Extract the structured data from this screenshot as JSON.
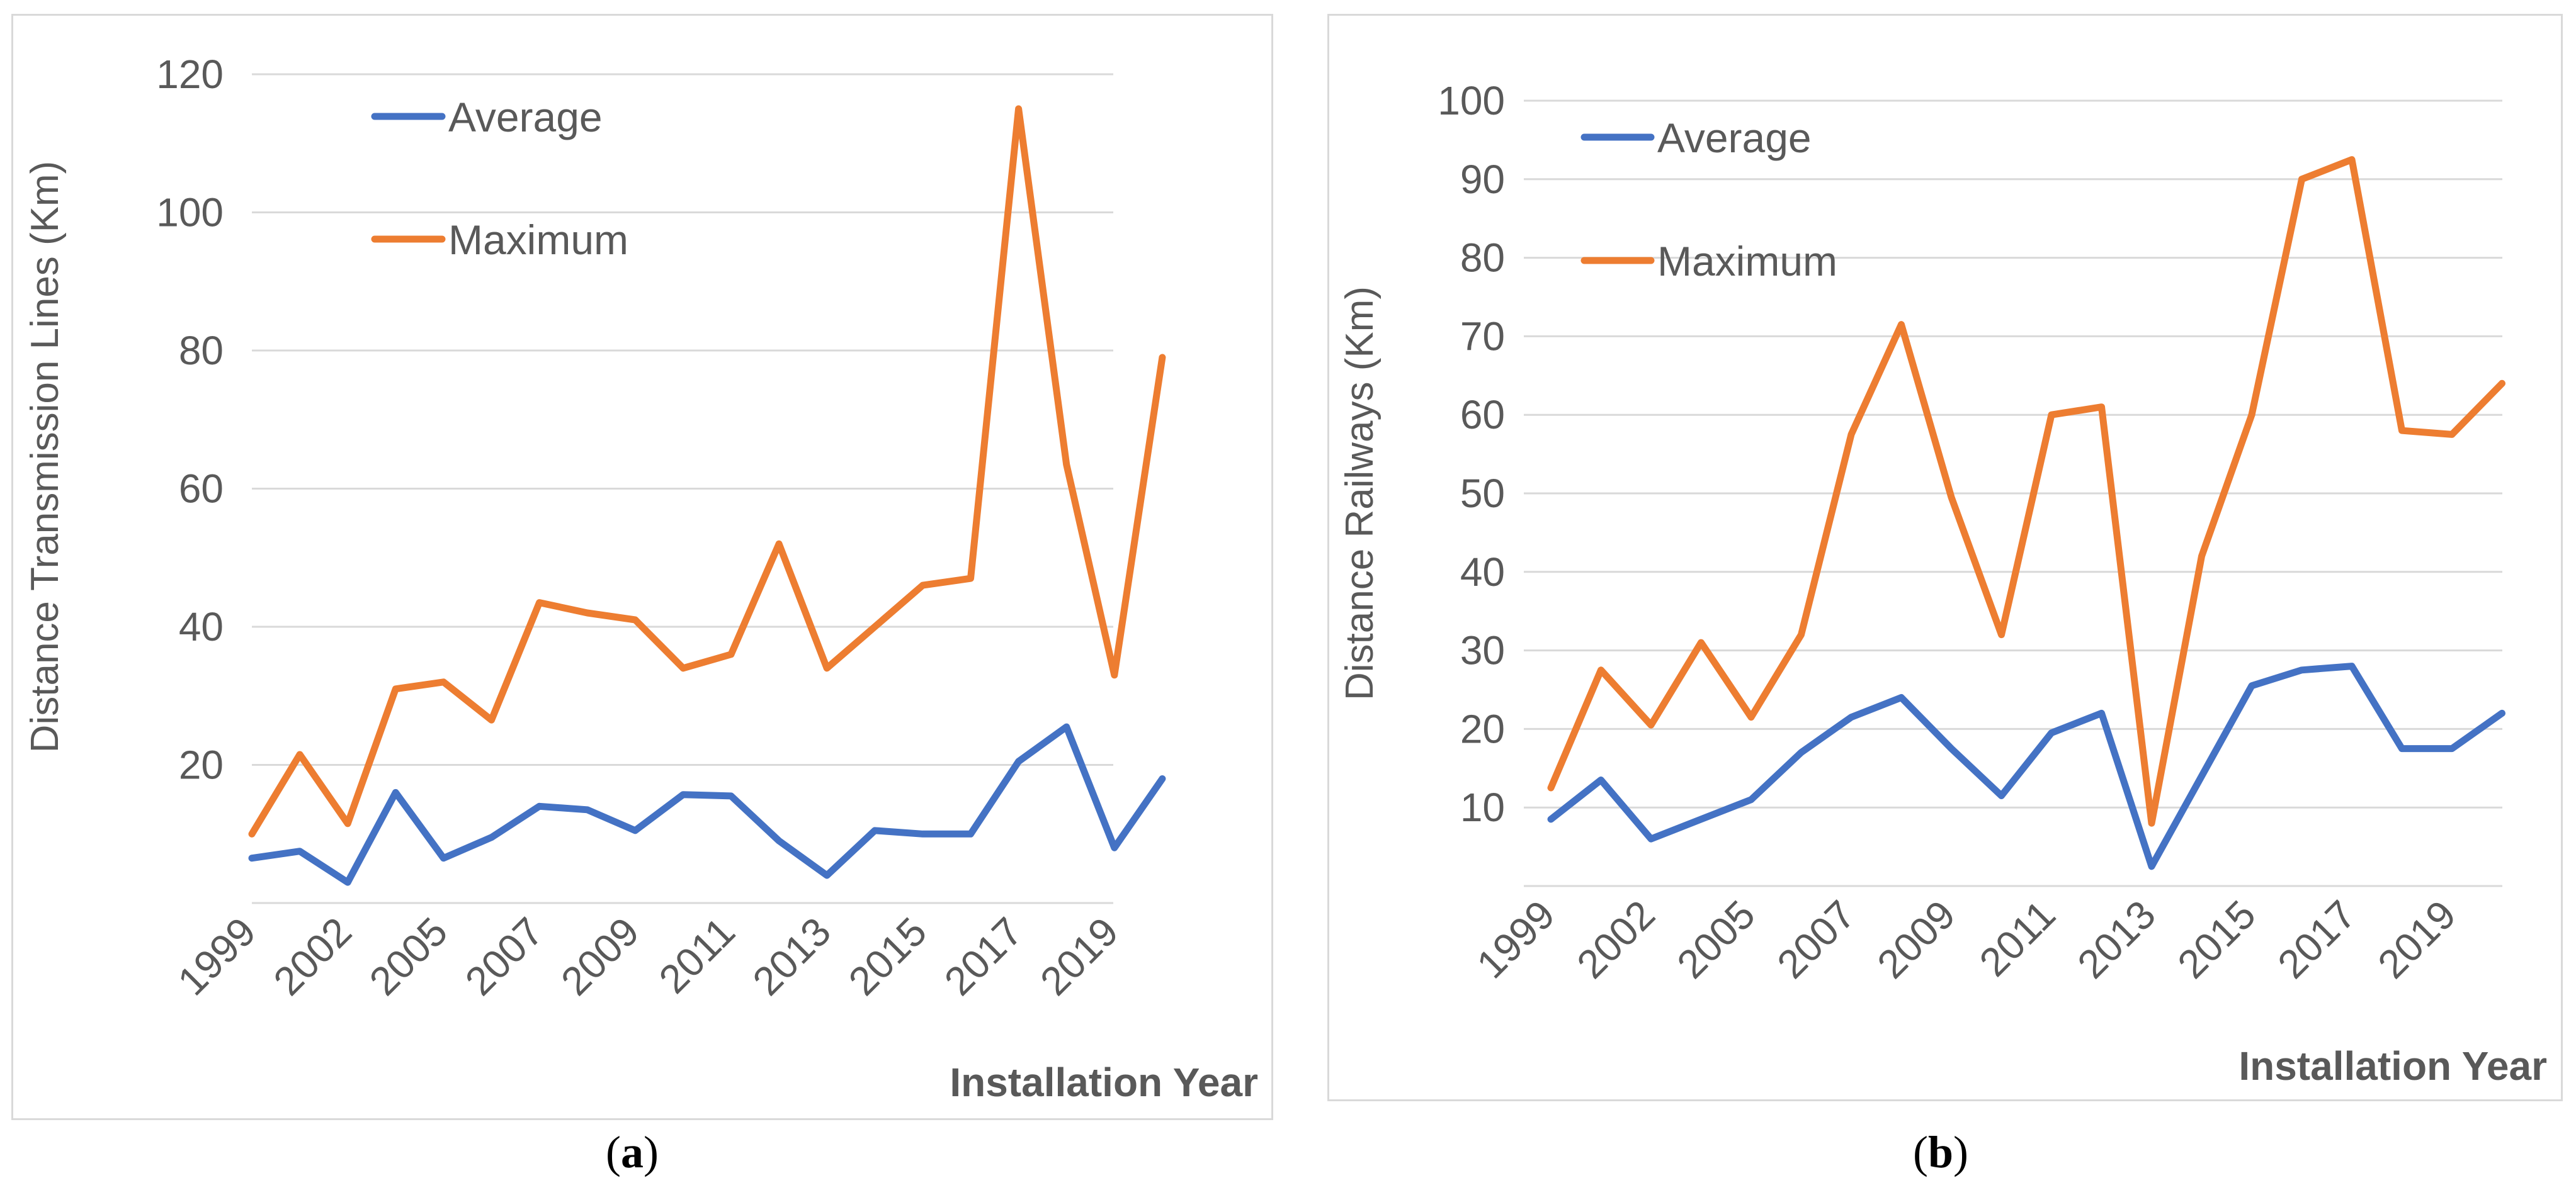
{
  "chart_data": [
    {
      "type": "line",
      "id": "a",
      "caption": "a",
      "xlabel": "Installation Year",
      "ylabel": "Distance Transmission Lines (Km)",
      "x": [
        "1999",
        "2000",
        "2002",
        "2004",
        "2005",
        "2006",
        "2007",
        "2008",
        "2009",
        "2010",
        "2011",
        "2012",
        "2013",
        "2014",
        "2015",
        "2016",
        "2017",
        "2018",
        "2019",
        "2020"
      ],
      "x_tick_labels": [
        "1999",
        "2002",
        "2005",
        "2007",
        "2009",
        "2011",
        "2013",
        "2015",
        "2017",
        "2019"
      ],
      "ylim": [
        0,
        120
      ],
      "y_ticks": [
        20,
        40,
        60,
        80,
        100,
        120
      ],
      "grid": true,
      "legend": "top-left",
      "series": [
        {
          "name": "Average",
          "color": "#4472c4",
          "values": [
            6.5,
            7.5,
            3,
            16,
            6.5,
            9.5,
            14,
            13.5,
            10.5,
            15.7,
            15.5,
            9,
            4,
            10.5,
            10,
            10,
            20.5,
            25.5,
            8,
            18
          ]
        },
        {
          "name": "Maximum",
          "color": "#ed7d31",
          "values": [
            10,
            21.5,
            11.5,
            31,
            32,
            26.5,
            43.5,
            42,
            41,
            34,
            36,
            52,
            34,
            40,
            46,
            47,
            115,
            63.5,
            33,
            79
          ]
        }
      ]
    },
    {
      "type": "line",
      "id": "b",
      "caption": "b",
      "xlabel": "Installation Year",
      "ylabel": "Distance Railways (Km)",
      "x": [
        "1999",
        "2000",
        "2002",
        "2004",
        "2005",
        "2006",
        "2007",
        "2008",
        "2009",
        "2010",
        "2011",
        "2012",
        "2013",
        "2014",
        "2015",
        "2016",
        "2017",
        "2018",
        "2019",
        "2020"
      ],
      "x_tick_labels": [
        "1999",
        "2002",
        "2005",
        "2007",
        "2009",
        "2011",
        "2013",
        "2015",
        "2017",
        "2019"
      ],
      "ylim": [
        0,
        100
      ],
      "y_ticks": [
        10,
        20,
        30,
        40,
        50,
        60,
        70,
        80,
        90,
        100
      ],
      "grid": true,
      "legend": "top-left",
      "series": [
        {
          "name": "Average",
          "color": "#4472c4",
          "values": [
            8.5,
            13.5,
            6,
            8.5,
            11,
            17,
            21.5,
            24,
            17.5,
            11.5,
            19.5,
            22,
            2.5,
            14,
            25.5,
            27.5,
            28,
            17.5,
            17.5,
            22
          ]
        },
        {
          "name": "Maximum",
          "color": "#ed7d31",
          "values": [
            12.5,
            27.5,
            20.5,
            31,
            21.5,
            32,
            57.5,
            71.5,
            49.5,
            32,
            60,
            61,
            8,
            42,
            60,
            90,
            92.5,
            58,
            57.5,
            64
          ]
        }
      ]
    }
  ]
}
